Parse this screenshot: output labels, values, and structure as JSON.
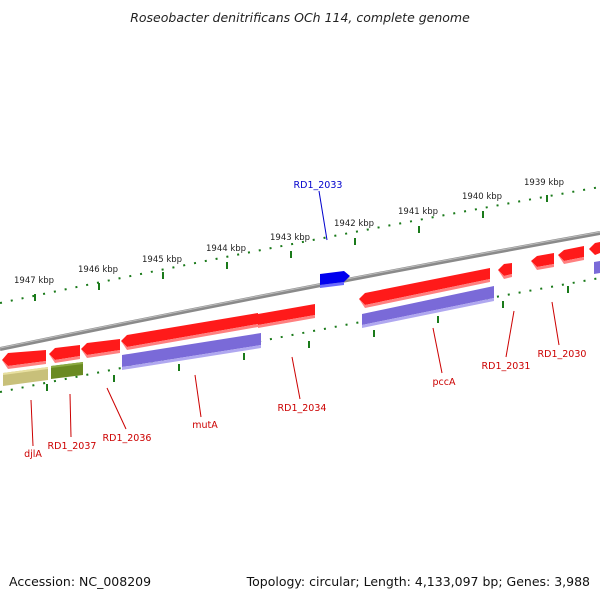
{
  "title": "Roseobacter denitrificans OCh 114, complete genome",
  "footer": {
    "accession": "Accession: NC_008209",
    "summary": "Topology: circular; Length: 4,133,097 bp; Genes: 3,988"
  },
  "colors": {
    "backbone": "#8a8a8a",
    "ticks": "#1a7a1a",
    "gene_red": "#ff1a1a",
    "gene_purple": "#7a6ad8",
    "gene_olive": "#c8c07a",
    "gene_green": "#6a8a22",
    "gene_blue": "#0000ee",
    "label_red": "#cc0000",
    "label_blue": "#0000cc"
  },
  "kbp_labels": [
    "1947 kbp",
    "1946 kbp",
    "1945 kbp",
    "1944 kbp",
    "1943 kbp",
    "1942 kbp",
    "1941 kbp",
    "1940 kbp",
    "1939 kbp"
  ],
  "gene_labels": {
    "rd1_2033": "RD1_2033",
    "djla": "djlA",
    "rd1_2037": "RD1_2037",
    "rd1_2036": "RD1_2036",
    "muta": "mutA",
    "rd1_2034": "RD1_2034",
    "pcca": "pccA",
    "rd1_2031": "RD1_2031",
    "rd1_2030": "RD1_2030"
  }
}
